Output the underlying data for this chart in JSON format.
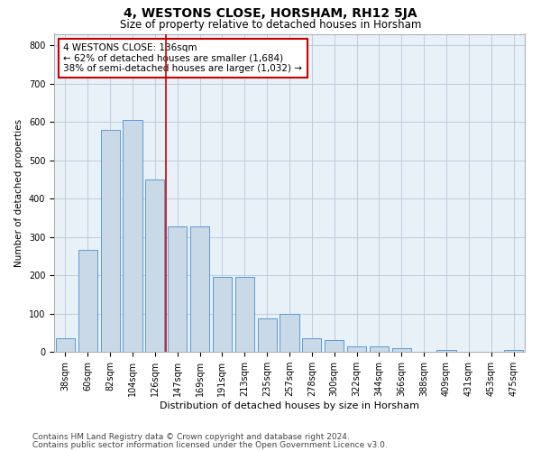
{
  "title": "4, WESTONS CLOSE, HORSHAM, RH12 5JA",
  "subtitle": "Size of property relative to detached houses in Horsham",
  "xlabel": "Distribution of detached houses by size in Horsham",
  "ylabel": "Number of detached properties",
  "categories": [
    "38sqm",
    "60sqm",
    "82sqm",
    "104sqm",
    "126sqm",
    "147sqm",
    "169sqm",
    "191sqm",
    "213sqm",
    "235sqm",
    "257sqm",
    "278sqm",
    "300sqm",
    "322sqm",
    "344sqm",
    "366sqm",
    "388sqm",
    "409sqm",
    "431sqm",
    "453sqm",
    "475sqm"
  ],
  "values": [
    35,
    265,
    580,
    605,
    450,
    328,
    328,
    195,
    195,
    88,
    100,
    35,
    30,
    15,
    13,
    10,
    0,
    5,
    0,
    0,
    5
  ],
  "bar_color": "#c9d9e8",
  "bar_edge_color": "#5b9bd5",
  "bar_width": 0.85,
  "red_line_x": 4.5,
  "red_line_color": "#cc0000",
  "annotation_text": "4 WESTONS CLOSE: 136sqm\n← 62% of detached houses are smaller (1,684)\n38% of semi-detached houses are larger (1,032) →",
  "annotation_box_color": "white",
  "annotation_box_edge_color": "#cc0000",
  "ylim": [
    0,
    830
  ],
  "yticks": [
    0,
    100,
    200,
    300,
    400,
    500,
    600,
    700,
    800
  ],
  "grid_color": "#b8c8d8",
  "bg_color": "#e8f0f8",
  "footer_line1": "Contains HM Land Registry data © Crown copyright and database right 2024.",
  "footer_line2": "Contains public sector information licensed under the Open Government Licence v3.0.",
  "title_fontsize": 10,
  "subtitle_fontsize": 8.5,
  "xlabel_fontsize": 8,
  "ylabel_fontsize": 7.5,
  "tick_fontsize": 7,
  "annotation_fontsize": 7.5,
  "footer_fontsize": 6.5
}
